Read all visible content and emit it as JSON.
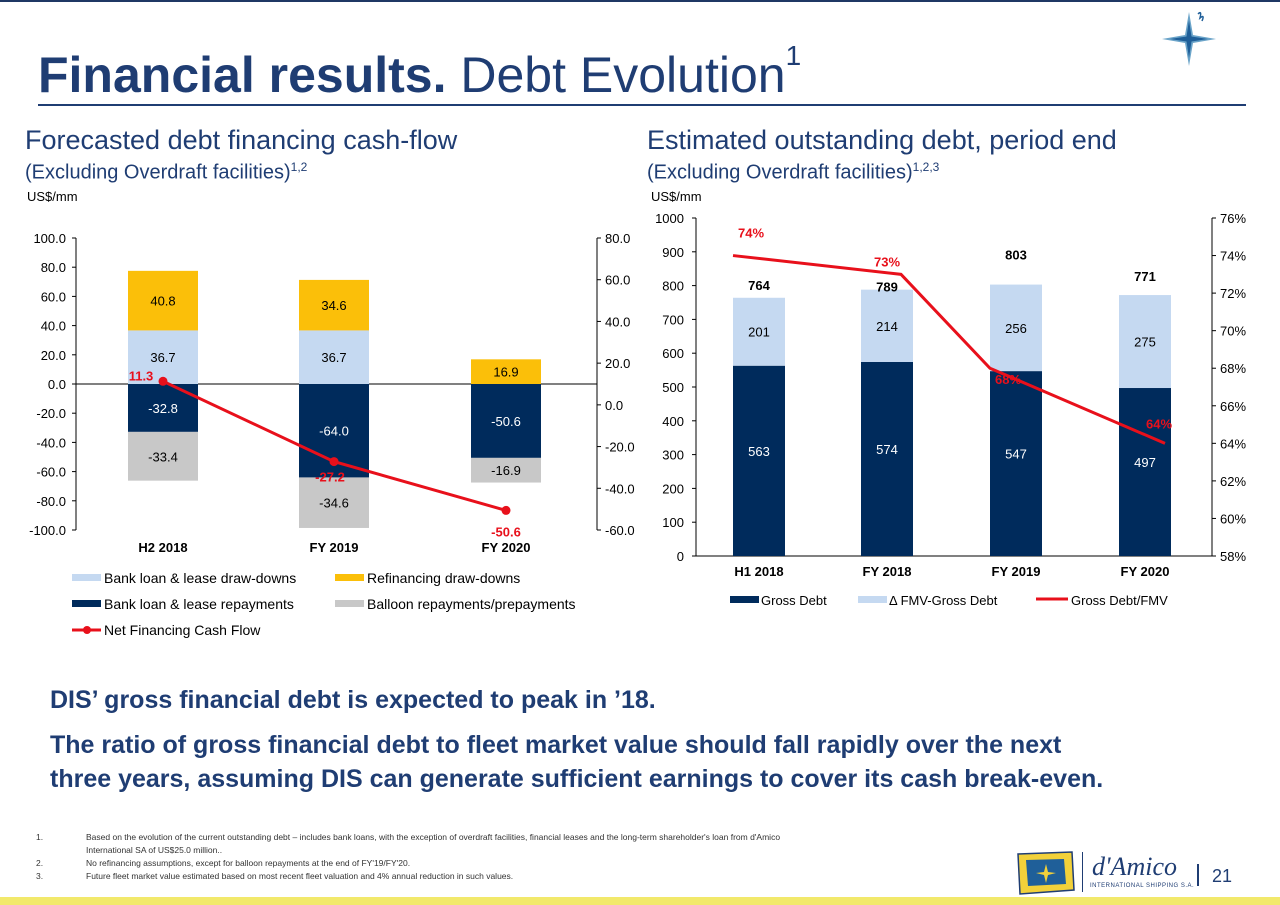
{
  "header": {
    "title_bold": "Financial results.",
    "title_regular": " Debt Evolution",
    "title_sup": "1"
  },
  "left_section": {
    "title": "Forecasted debt financing cash-flow",
    "subtitle": "(Excluding Overdraft facilities)",
    "subtitle_sup": "1,2",
    "unit": "US$/mm"
  },
  "right_section": {
    "title": "Estimated outstanding debt, period end",
    "subtitle": "(Excluding Overdraft facilities)",
    "subtitle_sup": "1,2,3",
    "unit": "US$/mm"
  },
  "chart_data": [
    {
      "type": "bar",
      "stacked": true,
      "categories": [
        "H2 2018",
        "FY 2019",
        "FY 2020"
      ],
      "series": [
        {
          "name": "Bank loan & lease draw-downs",
          "values": [
            36.7,
            36.7,
            null
          ],
          "color": "#c5d9f1"
        },
        {
          "name": "Refinancing draw-downs",
          "values": [
            40.8,
            34.6,
            16.9
          ],
          "color": "#fbbf09"
        },
        {
          "name": "Bank loan & lease repayments",
          "values": [
            -32.8,
            -64.0,
            -50.6
          ],
          "color": "#002b5c"
        },
        {
          "name": "Balloon repayments/prepayments",
          "values": [
            -33.4,
            -34.6,
            -16.9
          ],
          "color": "#c8c8c8"
        }
      ],
      "line_series": {
        "name": "Net Financing Cash Flow",
        "values": [
          11.3,
          -27.2,
          -50.6
        ],
        "color": "#e8101b",
        "label_color": "#e8101b"
      },
      "left_axis": {
        "ylim": [
          -100,
          100
        ],
        "ticks": [
          "100.0",
          "80.0",
          "60.0",
          "40.0",
          "20.0",
          "0.0",
          "-20.0",
          "-40.0",
          "-60.0",
          "-80.0",
          "-100.0"
        ]
      },
      "right_axis": {
        "ylim": [
          -60,
          80
        ],
        "ticks": [
          "80.0",
          "60.0",
          "40.0",
          "20.0",
          "0.0",
          "-20.0",
          "-40.0",
          "-60.0"
        ]
      },
      "data_labels": {
        "draw": [
          "36.7",
          "36.7",
          ""
        ],
        "refi": [
          "40.8",
          "34.6",
          "16.9"
        ],
        "repay": [
          "-32.8",
          "-64.0",
          "-50.6"
        ],
        "balloon": [
          "-33.4",
          "-34.6",
          "-16.9"
        ],
        "net": [
          "11.3",
          "-27.2",
          "-50.6"
        ]
      },
      "legend": "bottom"
    },
    {
      "type": "bar",
      "stacked": true,
      "categories": [
        "H1 2018",
        "FY 2018",
        "FY 2019",
        "FY 2020"
      ],
      "series": [
        {
          "name": "Gross Debt",
          "values": [
            563,
            574,
            547,
            497
          ],
          "color": "#002b5c"
        },
        {
          "name": "Δ FMV-Gross Debt",
          "values": [
            201,
            214,
            256,
            275
          ],
          "color": "#c5d9f1"
        }
      ],
      "totals": [
        "764",
        "789",
        "803",
        "771"
      ],
      "line_series": {
        "name": "Gross Debt/FMV",
        "values": [
          74,
          73,
          68,
          64
        ],
        "labels": [
          "74%",
          "73%",
          "68%",
          "64%"
        ],
        "color": "#e8101b"
      },
      "left_axis": {
        "ylim": [
          0,
          1000
        ],
        "ticks": [
          "1000",
          "900",
          "800",
          "700",
          "600",
          "500",
          "400",
          "300",
          "200",
          "100",
          "0"
        ]
      },
      "right_axis": {
        "ylim": [
          58,
          76
        ],
        "ticks": [
          "76%",
          "74%",
          "72%",
          "70%",
          "68%",
          "66%",
          "64%",
          "62%",
          "60%",
          "58%"
        ]
      },
      "data_labels": {
        "gross": [
          "563",
          "574",
          "547",
          "497"
        ],
        "delta": [
          "201",
          "214",
          "256",
          "275"
        ]
      },
      "legend": "bottom"
    }
  ],
  "messages": [
    "DIS’ gross financial debt is expected to peak in ’18.",
    "The ratio of gross financial debt to fleet market value should fall rapidly over the next",
    "three years, assuming DIS can generate sufficient earnings to cover its cash break-even."
  ],
  "footnotes": [
    {
      "num": "1.",
      "text": "Based on the evolution of the current outstanding debt – includes bank loans, with the exception of overdraft facilities, financial leases and the long-term shareholder's loan from d'Amico"
    },
    {
      "num": "",
      "text": "International SA of US$25.0 million.."
    },
    {
      "num": "2.",
      "text": "No refinancing assumptions, except for balloon repayments at the end of FY'19/FY'20."
    },
    {
      "num": "3.",
      "text": "Future fleet market value estimated based on most recent fleet valuation and 4% annual reduction in such values."
    }
  ],
  "logo": {
    "brand": "d'Amico",
    "tagline": "INTERNATIONAL SHIPPING S.A."
  },
  "page_number": "21",
  "colors": {
    "brand_blue": "#1f3d73",
    "navy": "#002b5c",
    "light_blue": "#c5d9f1",
    "gold": "#fbbf09",
    "grey": "#c8c8c8",
    "red": "#e8101b"
  }
}
